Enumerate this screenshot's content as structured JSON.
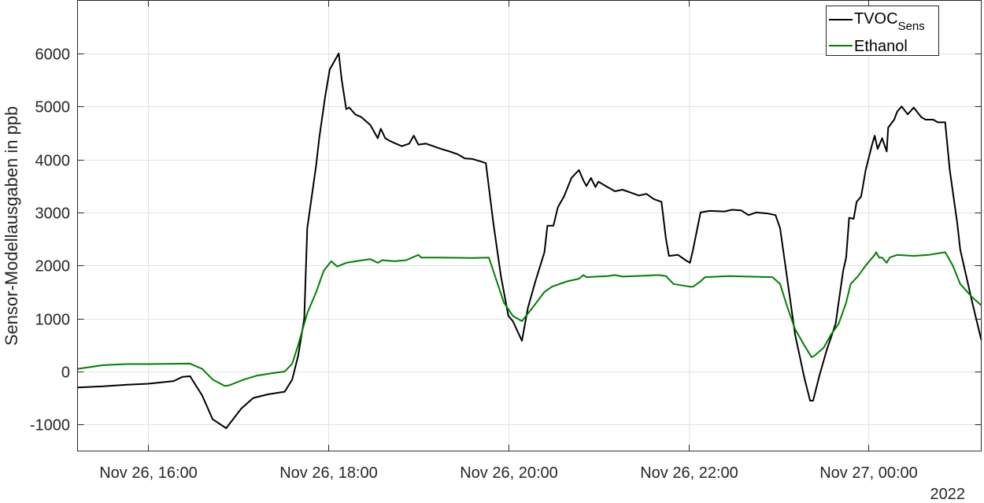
{
  "chart_data": {
    "type": "line",
    "title": "",
    "xlabel": "",
    "ylabel": "Sensor-Modellausgaben in ppb",
    "xlim": [
      "2022-11-26T15:13",
      "2022-11-27T01:15"
    ],
    "ylim": [
      -1500,
      7000
    ],
    "grid": true,
    "legend_position": "top-right",
    "x_ticks": [
      {
        "t": "2022-11-26T16:00",
        "label": "Nov 26, 16:00"
      },
      {
        "t": "2022-11-26T18:00",
        "label": "Nov 26, 18:00"
      },
      {
        "t": "2022-11-26T20:00",
        "label": "Nov 26, 20:00"
      },
      {
        "t": "2022-11-26T22:00",
        "label": "Nov 26, 22:00"
      },
      {
        "t": "2022-11-27T00:00",
        "label": "Nov 27, 00:00"
      }
    ],
    "x_secondary_label": "2022",
    "y_ticks": [
      -1000,
      0,
      1000,
      2000,
      3000,
      4000,
      5000,
      6000
    ],
    "y_tick_labels": [
      "-1000",
      "0",
      "1000",
      "2000",
      "3000",
      "4000",
      "5000",
      "6000"
    ],
    "series": [
      {
        "name": "TVOC",
        "name_subscript": "Sens",
        "color": "#000000",
        "points": [
          [
            "2022-11-26T15:13",
            -300
          ],
          [
            "2022-11-26T15:30",
            -280
          ],
          [
            "2022-11-26T15:46",
            -250
          ],
          [
            "2022-11-26T16:00",
            -230
          ],
          [
            "2022-11-26T16:17",
            -180
          ],
          [
            "2022-11-26T16:23",
            -100
          ],
          [
            "2022-11-26T16:28",
            -90
          ],
          [
            "2022-11-26T16:36",
            -450
          ],
          [
            "2022-11-26T16:43",
            -900
          ],
          [
            "2022-11-26T16:52",
            -1070
          ],
          [
            "2022-11-26T17:02",
            -700
          ],
          [
            "2022-11-26T17:10",
            -500
          ],
          [
            "2022-11-26T17:20",
            -430
          ],
          [
            "2022-11-26T17:31",
            -380
          ],
          [
            "2022-11-26T17:36",
            -150
          ],
          [
            "2022-11-26T17:40",
            300
          ],
          [
            "2022-11-26T17:44",
            1000
          ],
          [
            "2022-11-26T17:46",
            2700
          ],
          [
            "2022-11-26T17:52",
            3900
          ],
          [
            "2022-11-26T17:54",
            4400
          ],
          [
            "2022-11-26T17:58",
            5200
          ],
          [
            "2022-11-26T18:01",
            5700
          ],
          [
            "2022-11-26T18:07",
            6000
          ],
          [
            "2022-11-26T18:09",
            5500
          ],
          [
            "2022-11-26T18:12",
            4950
          ],
          [
            "2022-11-26T18:14",
            4980
          ],
          [
            "2022-11-26T18:18",
            4850
          ],
          [
            "2022-11-26T18:22",
            4800
          ],
          [
            "2022-11-26T18:28",
            4650
          ],
          [
            "2022-11-26T18:33",
            4400
          ],
          [
            "2022-11-26T18:35",
            4580
          ],
          [
            "2022-11-26T18:38",
            4400
          ],
          [
            "2022-11-26T18:41",
            4350
          ],
          [
            "2022-11-26T18:45",
            4300
          ],
          [
            "2022-11-26T18:49",
            4250
          ],
          [
            "2022-11-26T18:54",
            4300
          ],
          [
            "2022-11-26T18:57",
            4450
          ],
          [
            "2022-11-26T19:00",
            4280
          ],
          [
            "2022-11-26T19:05",
            4300
          ],
          [
            "2022-11-26T19:10",
            4250
          ],
          [
            "2022-11-26T19:15",
            4200
          ],
          [
            "2022-11-26T19:21",
            4150
          ],
          [
            "2022-11-26T19:26",
            4100
          ],
          [
            "2022-11-26T19:31",
            4020
          ],
          [
            "2022-11-26T19:36",
            4010
          ],
          [
            "2022-11-26T19:42",
            3960
          ],
          [
            "2022-11-26T19:45",
            3930
          ],
          [
            "2022-11-26T19:50",
            2800
          ],
          [
            "2022-11-26T19:55",
            1800
          ],
          [
            "2022-11-26T20:00",
            1050
          ],
          [
            "2022-11-26T20:03",
            950
          ],
          [
            "2022-11-26T20:09",
            580
          ],
          [
            "2022-11-26T20:13",
            1200
          ],
          [
            "2022-11-26T20:18",
            1700
          ],
          [
            "2022-11-26T20:24",
            2250
          ],
          [
            "2022-11-26T20:26",
            2750
          ],
          [
            "2022-11-26T20:30",
            2750
          ],
          [
            "2022-11-26T20:33",
            3100
          ],
          [
            "2022-11-26T20:37",
            3300
          ],
          [
            "2022-11-26T20:42",
            3650
          ],
          [
            "2022-11-26T20:47",
            3800
          ],
          [
            "2022-11-26T20:50",
            3600
          ],
          [
            "2022-11-26T20:52",
            3500
          ],
          [
            "2022-11-26T20:55",
            3650
          ],
          [
            "2022-11-26T20:58",
            3480
          ],
          [
            "2022-11-26T21:00",
            3580
          ],
          [
            "2022-11-26T21:06",
            3480
          ],
          [
            "2022-11-26T21:11",
            3400
          ],
          [
            "2022-11-26T21:16",
            3430
          ],
          [
            "2022-11-26T21:21",
            3380
          ],
          [
            "2022-11-26T21:27",
            3320
          ],
          [
            "2022-11-26T21:32",
            3350
          ],
          [
            "2022-11-26T21:37",
            3250
          ],
          [
            "2022-11-26T21:42",
            3200
          ],
          [
            "2022-11-26T21:45",
            2500
          ],
          [
            "2022-11-26T21:47",
            2180
          ],
          [
            "2022-11-26T21:53",
            2200
          ],
          [
            "2022-11-26T21:58",
            2100
          ],
          [
            "2022-11-26T22:01",
            2050
          ],
          [
            "2022-11-26T22:03",
            2300
          ],
          [
            "2022-11-26T22:08",
            3000
          ],
          [
            "2022-11-26T22:14",
            3030
          ],
          [
            "2022-11-26T22:24",
            3020
          ],
          [
            "2022-11-26T22:29",
            3050
          ],
          [
            "2022-11-26T22:35",
            3040
          ],
          [
            "2022-11-26T22:40",
            2950
          ],
          [
            "2022-11-26T22:45",
            3000
          ],
          [
            "2022-11-26T22:53",
            2980
          ],
          [
            "2022-11-26T22:58",
            2950
          ],
          [
            "2022-11-26T23:01",
            2700
          ],
          [
            "2022-11-26T23:06",
            1700
          ],
          [
            "2022-11-26T23:11",
            700
          ],
          [
            "2022-11-26T23:17",
            -100
          ],
          [
            "2022-11-26T23:21",
            -550
          ],
          [
            "2022-11-26T23:23",
            -550
          ],
          [
            "2022-11-26T23:27",
            -100
          ],
          [
            "2022-11-26T23:32",
            400
          ],
          [
            "2022-11-26T23:38",
            900
          ],
          [
            "2022-11-26T23:40",
            1300
          ],
          [
            "2022-11-26T23:43",
            1900
          ],
          [
            "2022-11-26T23:45",
            2150
          ],
          [
            "2022-11-26T23:47",
            2900
          ],
          [
            "2022-11-26T23:50",
            2880
          ],
          [
            "2022-11-26T23:52",
            3200
          ],
          [
            "2022-11-26T23:55",
            3300
          ],
          [
            "2022-11-26T23:58",
            3800
          ],
          [
            "2022-11-27T00:02",
            4250
          ],
          [
            "2022-11-27T00:04",
            4450
          ],
          [
            "2022-11-27T00:06",
            4200
          ],
          [
            "2022-11-27T00:09",
            4400
          ],
          [
            "2022-11-27T00:12",
            4150
          ],
          [
            "2022-11-27T00:13",
            4600
          ],
          [
            "2022-11-27T00:17",
            4750
          ],
          [
            "2022-11-27T00:19",
            4900
          ],
          [
            "2022-11-27T00:22",
            5000
          ],
          [
            "2022-11-27T00:26",
            4850
          ],
          [
            "2022-11-27T00:30",
            4980
          ],
          [
            "2022-11-27T00:35",
            4800
          ],
          [
            "2022-11-27T00:38",
            4750
          ],
          [
            "2022-11-27T00:43",
            4750
          ],
          [
            "2022-11-27T00:46",
            4700
          ],
          [
            "2022-11-27T00:51",
            4700
          ],
          [
            "2022-11-27T00:54",
            3800
          ],
          [
            "2022-11-27T00:59",
            2800
          ],
          [
            "2022-11-27T01:01",
            2300
          ],
          [
            "2022-11-27T01:09",
            1300
          ],
          [
            "2022-11-27T01:15",
            600
          ]
        ]
      },
      {
        "name": "Ethanol",
        "color": "#008000",
        "points": [
          [
            "2022-11-26T15:13",
            50
          ],
          [
            "2022-11-26T15:30",
            120
          ],
          [
            "2022-11-26T15:46",
            140
          ],
          [
            "2022-11-26T16:00",
            140
          ],
          [
            "2022-11-26T16:28",
            150
          ],
          [
            "2022-11-26T16:36",
            50
          ],
          [
            "2022-11-26T16:43",
            -150
          ],
          [
            "2022-11-26T16:51",
            -270
          ],
          [
            "2022-11-26T16:54",
            -260
          ],
          [
            "2022-11-26T17:04",
            -150
          ],
          [
            "2022-11-26T17:12",
            -80
          ],
          [
            "2022-11-26T17:23",
            -30
          ],
          [
            "2022-11-26T17:31",
            0
          ],
          [
            "2022-11-26T17:36",
            150
          ],
          [
            "2022-11-26T17:40",
            500
          ],
          [
            "2022-11-26T17:46",
            1100
          ],
          [
            "2022-11-26T17:52",
            1500
          ],
          [
            "2022-11-26T17:57",
            1900
          ],
          [
            "2022-11-26T18:02",
            2080
          ],
          [
            "2022-11-26T18:06",
            1980
          ],
          [
            "2022-11-26T18:12",
            2050
          ],
          [
            "2022-11-26T18:23",
            2100
          ],
          [
            "2022-11-26T18:28",
            2120
          ],
          [
            "2022-11-26T18:33",
            2050
          ],
          [
            "2022-11-26T18:36",
            2100
          ],
          [
            "2022-11-26T18:44",
            2080
          ],
          [
            "2022-11-26T18:52",
            2100
          ],
          [
            "2022-11-26T19:00",
            2200
          ],
          [
            "2022-11-26T19:02",
            2150
          ],
          [
            "2022-11-26T19:15",
            2150
          ],
          [
            "2022-11-26T19:36",
            2140
          ],
          [
            "2022-11-26T19:47",
            2150
          ],
          [
            "2022-11-26T19:57",
            1300
          ],
          [
            "2022-11-26T20:03",
            1050
          ],
          [
            "2022-11-26T20:09",
            950
          ],
          [
            "2022-11-26T20:16",
            1200
          ],
          [
            "2022-11-26T20:24",
            1500
          ],
          [
            "2022-11-26T20:29",
            1600
          ],
          [
            "2022-11-26T20:39",
            1700
          ],
          [
            "2022-11-26T20:47",
            1750
          ],
          [
            "2022-11-26T20:50",
            1820
          ],
          [
            "2022-11-26T20:52",
            1780
          ],
          [
            "2022-11-26T21:06",
            1800
          ],
          [
            "2022-11-26T21:11",
            1820
          ],
          [
            "2022-11-26T21:16",
            1790
          ],
          [
            "2022-11-26T21:32",
            1810
          ],
          [
            "2022-11-26T21:40",
            1820
          ],
          [
            "2022-11-26T21:45",
            1800
          ],
          [
            "2022-11-26T21:50",
            1650
          ],
          [
            "2022-11-26T22:01",
            1600
          ],
          [
            "2022-11-26T22:03",
            1600
          ],
          [
            "2022-11-26T22:08",
            1700
          ],
          [
            "2022-11-26T22:11",
            1780
          ],
          [
            "2022-11-26T22:27",
            1800
          ],
          [
            "2022-11-26T22:40",
            1790
          ],
          [
            "2022-11-26T22:56",
            1780
          ],
          [
            "2022-11-26T23:01",
            1650
          ],
          [
            "2022-11-26T23:06",
            1200
          ],
          [
            "2022-11-26T23:11",
            800
          ],
          [
            "2022-11-26T23:17",
            500
          ],
          [
            "2022-11-26T23:22",
            270
          ],
          [
            "2022-11-26T23:24",
            300
          ],
          [
            "2022-11-26T23:30",
            450
          ],
          [
            "2022-11-26T23:35",
            700
          ],
          [
            "2022-11-26T23:40",
            900
          ],
          [
            "2022-11-26T23:45",
            1300
          ],
          [
            "2022-11-26T23:48",
            1650
          ],
          [
            "2022-11-26T23:53",
            1800
          ],
          [
            "2022-11-26T23:58",
            2000
          ],
          [
            "2022-11-27T00:04",
            2200
          ],
          [
            "2022-11-27T00:05",
            2250
          ],
          [
            "2022-11-27T00:07",
            2150
          ],
          [
            "2022-11-27T00:09",
            2150
          ],
          [
            "2022-11-27T00:12",
            2050
          ],
          [
            "2022-11-27T00:14",
            2150
          ],
          [
            "2022-11-27T00:19",
            2200
          ],
          [
            "2022-11-27T00:30",
            2180
          ],
          [
            "2022-11-27T00:40",
            2200
          ],
          [
            "2022-11-27T00:51",
            2250
          ],
          [
            "2022-11-27T00:56",
            2000
          ],
          [
            "2022-11-27T01:01",
            1650
          ],
          [
            "2022-11-27T01:09",
            1400
          ],
          [
            "2022-11-27T01:15",
            1250
          ]
        ]
      }
    ]
  }
}
